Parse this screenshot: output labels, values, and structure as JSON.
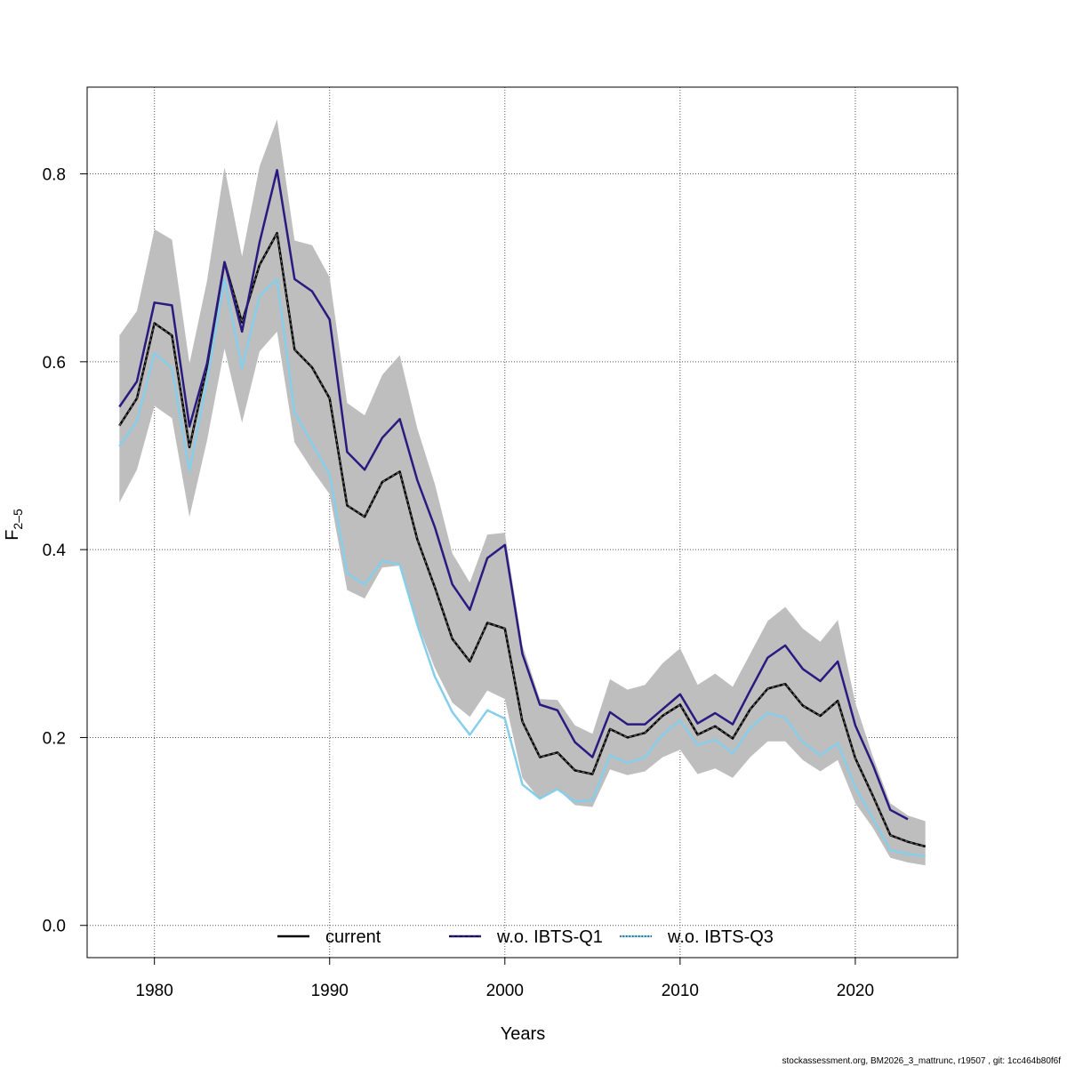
{
  "chart_data": {
    "type": "line",
    "title": "",
    "xlabel": "Years",
    "ylabel": "F",
    "ylabel_subscript": "2–5",
    "xlim": [
      1978,
      2024
    ],
    "ylim": [
      0,
      0.858
    ],
    "x_ticks": [
      1980,
      1990,
      2000,
      2010,
      2020
    ],
    "y_ticks": [
      "0.0",
      "0.2",
      "0.4",
      "0.6",
      "0.8"
    ],
    "grid": true,
    "legend_placement": "bottom",
    "colors": {
      "band": "#BEBEBE",
      "current": "#000000",
      "q1": "#2A1A80",
      "q3": "#87CEEB"
    },
    "band": {
      "x": [
        1978,
        1979,
        1980,
        1981,
        1982,
        1983,
        1984,
        1985,
        1986,
        1987,
        1988,
        1989,
        1990,
        1991,
        1992,
        1993,
        1994,
        1995,
        1996,
        1997,
        1998,
        1999,
        2000,
        2001,
        2002,
        2003,
        2004,
        2005,
        2006,
        2007,
        2008,
        2009,
        2010,
        2011,
        2012,
        2013,
        2014,
        2015,
        2016,
        2017,
        2018,
        2019,
        2020,
        2021,
        2022,
        2023,
        2024
      ],
      "upper": [
        0.628,
        0.654,
        0.741,
        0.73,
        0.598,
        0.686,
        0.807,
        0.712,
        0.808,
        0.858,
        0.729,
        0.724,
        0.69,
        0.556,
        0.543,
        0.586,
        0.607,
        0.529,
        0.47,
        0.396,
        0.365,
        0.416,
        0.418,
        0.298,
        0.241,
        0.24,
        0.213,
        0.204,
        0.262,
        0.251,
        0.256,
        0.279,
        0.295,
        0.256,
        0.268,
        0.254,
        0.289,
        0.324,
        0.339,
        0.316,
        0.302,
        0.325,
        0.237,
        0.18,
        0.13,
        0.117,
        0.111
      ],
      "lower": [
        0.45,
        0.485,
        0.553,
        0.54,
        0.435,
        0.516,
        0.614,
        0.535,
        0.611,
        0.632,
        0.514,
        0.485,
        0.459,
        0.357,
        0.348,
        0.381,
        0.383,
        0.322,
        0.274,
        0.237,
        0.222,
        0.25,
        0.241,
        0.157,
        0.134,
        0.145,
        0.128,
        0.126,
        0.166,
        0.16,
        0.164,
        0.179,
        0.187,
        0.161,
        0.167,
        0.157,
        0.179,
        0.196,
        0.196,
        0.176,
        0.164,
        0.176,
        0.13,
        0.104,
        0.072,
        0.067,
        0.064
      ]
    },
    "series": [
      {
        "name": "current",
        "x": [
          1978,
          1979,
          1980,
          1981,
          1982,
          1983,
          1984,
          1985,
          1986,
          1987,
          1988,
          1989,
          1990,
          1991,
          1992,
          1993,
          1994,
          1995,
          1996,
          1997,
          1998,
          1999,
          2000,
          2001,
          2002,
          2003,
          2004,
          2005,
          2006,
          2007,
          2008,
          2009,
          2010,
          2011,
          2012,
          2013,
          2014,
          2015,
          2016,
          2017,
          2018,
          2019,
          2020,
          2021,
          2022,
          2023,
          2024
        ],
        "values": [
          0.532,
          0.561,
          0.641,
          0.628,
          0.509,
          0.595,
          0.706,
          0.642,
          0.703,
          0.737,
          0.613,
          0.594,
          0.561,
          0.447,
          0.435,
          0.472,
          0.483,
          0.411,
          0.36,
          0.305,
          0.281,
          0.322,
          0.316,
          0.217,
          0.179,
          0.184,
          0.165,
          0.161,
          0.209,
          0.2,
          0.205,
          0.223,
          0.235,
          0.203,
          0.212,
          0.199,
          0.23,
          0.252,
          0.257,
          0.234,
          0.223,
          0.239,
          0.178,
          0.138,
          0.096,
          0.089,
          0.084
        ]
      },
      {
        "name": "w.o. IBTS-Q1",
        "x": [
          1978,
          1979,
          1980,
          1981,
          1982,
          1983,
          1984,
          1985,
          1986,
          1987,
          1988,
          1989,
          1990,
          1991,
          1992,
          1993,
          1994,
          1995,
          1996,
          1997,
          1998,
          1999,
          2000,
          2001,
          2002,
          2003,
          2004,
          2005,
          2006,
          2007,
          2008,
          2009,
          2010,
          2011,
          2012,
          2013,
          2014,
          2015,
          2016,
          2017,
          2018,
          2019,
          2020,
          2021,
          2022,
          2023
        ],
        "values": [
          0.552,
          0.579,
          0.663,
          0.66,
          0.531,
          0.598,
          0.706,
          0.632,
          0.727,
          0.804,
          0.688,
          0.675,
          0.645,
          0.504,
          0.485,
          0.519,
          0.539,
          0.474,
          0.424,
          0.363,
          0.336,
          0.391,
          0.405,
          0.289,
          0.235,
          0.229,
          0.195,
          0.179,
          0.227,
          0.214,
          0.214,
          0.23,
          0.246,
          0.215,
          0.226,
          0.214,
          0.25,
          0.285,
          0.298,
          0.273,
          0.26,
          0.281,
          0.213,
          0.171,
          0.123,
          0.113
        ]
      },
      {
        "name": "w.o. IBTS-Q3",
        "x": [
          1978,
          1979,
          1980,
          1981,
          1982,
          1983,
          1984,
          1985,
          1986,
          1987,
          1988,
          1989,
          1990,
          1991,
          1992,
          1993,
          1994,
          1995,
          1996,
          1997,
          1998,
          1999,
          2000,
          2001,
          2002,
          2003,
          2004,
          2005,
          2006,
          2007,
          2008,
          2009,
          2010,
          2011,
          2012,
          2013,
          2014,
          2015,
          2016,
          2017,
          2018,
          2019,
          2020,
          2021,
          2022,
          2023,
          2024
        ],
        "values": [
          0.51,
          0.537,
          0.609,
          0.593,
          0.484,
          0.58,
          0.688,
          0.593,
          0.67,
          0.688,
          0.546,
          0.513,
          0.48,
          0.375,
          0.363,
          0.388,
          0.384,
          0.32,
          0.265,
          0.227,
          0.203,
          0.229,
          0.22,
          0.15,
          0.135,
          0.145,
          0.132,
          0.133,
          0.181,
          0.173,
          0.179,
          0.203,
          0.218,
          0.192,
          0.198,
          0.183,
          0.21,
          0.226,
          0.221,
          0.195,
          0.181,
          0.194,
          0.147,
          0.114,
          0.08,
          0.076,
          0.074
        ]
      }
    ]
  },
  "footer": "stockassessment.org, BM2026_3_mattrunc, r19507 , git: 1cc464b80f6f"
}
